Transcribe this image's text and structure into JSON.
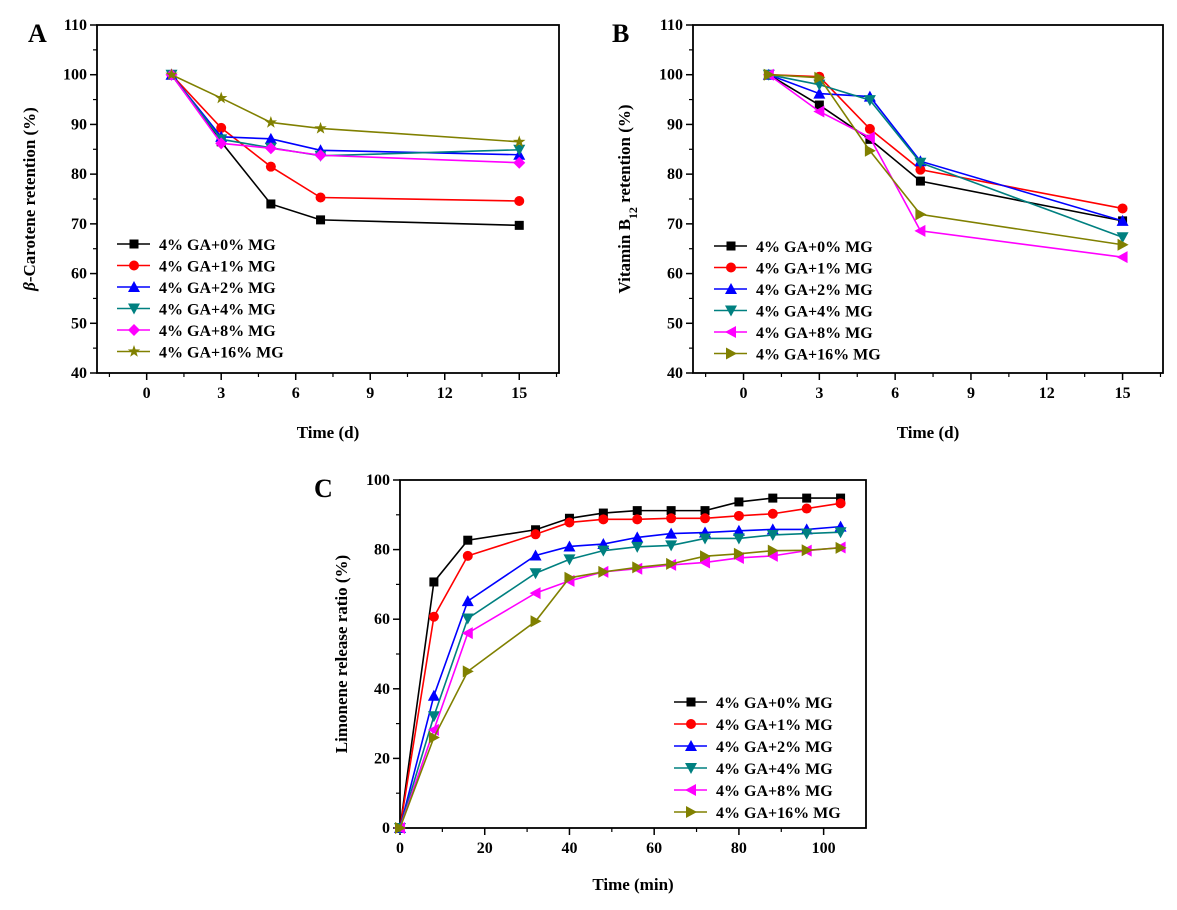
{
  "chart_data": [
    {
      "panel": "A",
      "type": "line",
      "xlabel": "Time (d)",
      "ylabel": [
        {
          "text": "β",
          "italic": true
        },
        {
          "text": "-Carotene retention (%)"
        }
      ],
      "xlim": [
        -2,
        16.6
      ],
      "ylim": [
        40,
        110
      ],
      "xticks": [
        0,
        3,
        6,
        9,
        12,
        15
      ],
      "yticks": [
        40,
        50,
        60,
        70,
        80,
        90,
        100,
        110
      ],
      "legend": "bottom-left",
      "x": [
        1,
        3,
        5,
        7,
        15
      ],
      "series": [
        {
          "name": "4% GA+0% MG",
          "color": "#000000",
          "marker": "square",
          "values": [
            100,
            86.5,
            74.0,
            70.8,
            69.7
          ]
        },
        {
          "name": "4% GA+1% MG",
          "color": "#ff0000",
          "marker": "circle",
          "values": [
            100,
            89.3,
            81.5,
            75.3,
            74.6
          ]
        },
        {
          "name": "4% GA+2% MG",
          "color": "#0000ff",
          "marker": "triangle-up",
          "values": [
            100,
            87.5,
            87.1,
            84.8,
            83.9
          ]
        },
        {
          "name": "4% GA+4% MG",
          "color": "#008080",
          "marker": "triangle-down",
          "values": [
            100,
            87.0,
            85.3,
            83.7,
            84.9
          ]
        },
        {
          "name": "4% GA+8% MG",
          "color": "#ff00ff",
          "marker": "diamond",
          "values": [
            100,
            86.2,
            85.2,
            83.8,
            82.3
          ]
        },
        {
          "name": "4% GA+16% MG",
          "color": "#808000",
          "marker": "star",
          "values": [
            100,
            95.3,
            90.4,
            89.2,
            86.5
          ]
        }
      ]
    },
    {
      "panel": "B",
      "type": "line",
      "xlabel": "Time (d)",
      "ylabel": [
        {
          "text": "Vitamin B"
        },
        {
          "text": "12",
          "sub": true
        },
        {
          "text": " retention (%)"
        }
      ],
      "xlim": [
        -2,
        16.6
      ],
      "ylim": [
        40,
        110
      ],
      "xticks": [
        0,
        3,
        6,
        9,
        12,
        15
      ],
      "yticks": [
        40,
        50,
        60,
        70,
        80,
        90,
        100,
        110
      ],
      "legend": "bottom-left",
      "x": [
        1,
        3,
        5,
        7,
        15
      ],
      "series": [
        {
          "name": "4% GA+0% MG",
          "color": "#000000",
          "marker": "square",
          "values": [
            100,
            93.9,
            87.0,
            78.6,
            70.6
          ]
        },
        {
          "name": "4% GA+1% MG",
          "color": "#ff0000",
          "marker": "circle",
          "values": [
            100,
            99.6,
            89.1,
            80.9,
            73.1
          ]
        },
        {
          "name": "4% GA+2% MG",
          "color": "#0000ff",
          "marker": "triangle-up",
          "values": [
            100,
            96.2,
            95.6,
            82.6,
            70.6
          ]
        },
        {
          "name": "4% GA+4% MG",
          "color": "#008080",
          "marker": "triangle-down",
          "values": [
            100,
            98.0,
            94.9,
            82.3,
            67.3
          ]
        },
        {
          "name": "4% GA+8% MG",
          "color": "#ff00ff",
          "marker": "triangle-left",
          "values": [
            100,
            92.6,
            87.4,
            68.6,
            63.3
          ]
        },
        {
          "name": "4% GA+16% MG",
          "color": "#808000",
          "marker": "triangle-right",
          "values": [
            100,
            99.4,
            84.7,
            71.9,
            65.8
          ]
        }
      ]
    },
    {
      "panel": "C",
      "type": "line",
      "xlabel": "Time (min)",
      "ylabel": [
        {
          "text": "Limonene release ratio (%)"
        }
      ],
      "xlim": [
        0,
        110
      ],
      "ylim": [
        0,
        100
      ],
      "xticks": [
        0,
        20,
        40,
        60,
        80,
        100
      ],
      "yticks": [
        0,
        20,
        40,
        60,
        80,
        100
      ],
      "legend": "bottom-right",
      "x": [
        0,
        8,
        16,
        32,
        40,
        48,
        56,
        64,
        72,
        80,
        88,
        96,
        104
      ],
      "series": [
        {
          "name": "4% GA+0% MG",
          "color": "#000000",
          "marker": "square",
          "values": [
            0,
            70.7,
            82.7,
            85.7,
            89.0,
            90.5,
            91.2,
            91.2,
            91.2,
            93.7,
            94.8,
            94.8,
            94.8
          ]
        },
        {
          "name": "4% GA+1% MG",
          "color": "#ff0000",
          "marker": "circle",
          "values": [
            0,
            60.7,
            78.2,
            84.4,
            87.8,
            88.7,
            88.7,
            89.0,
            89.0,
            89.7,
            90.3,
            91.8,
            93.3
          ]
        },
        {
          "name": "4% GA+2% MG",
          "color": "#0000ff",
          "marker": "triangle-up",
          "values": [
            0,
            38.0,
            65.2,
            78.3,
            80.9,
            81.6,
            83.5,
            84.6,
            84.9,
            85.4,
            85.8,
            85.8,
            86.6
          ]
        },
        {
          "name": "4% GA+4% MG",
          "color": "#008080",
          "marker": "triangle-down",
          "values": [
            0,
            32.1,
            60.2,
            73.2,
            77.2,
            79.7,
            80.8,
            81.2,
            83.2,
            83.2,
            84.2,
            84.6,
            85.0
          ]
        },
        {
          "name": "4% GA+8% MG",
          "color": "#ff00ff",
          "marker": "triangle-left",
          "values": [
            0,
            28.2,
            56.0,
            67.5,
            71.0,
            73.6,
            74.5,
            75.6,
            76.3,
            77.6,
            78.2,
            79.7,
            80.6
          ]
        },
        {
          "name": "4% GA+16% MG",
          "color": "#808000",
          "marker": "triangle-right",
          "values": [
            0,
            26.0,
            45.0,
            59.4,
            71.9,
            73.6,
            74.9,
            75.9,
            78.1,
            78.8,
            79.7,
            79.8,
            80.5
          ]
        }
      ]
    }
  ]
}
